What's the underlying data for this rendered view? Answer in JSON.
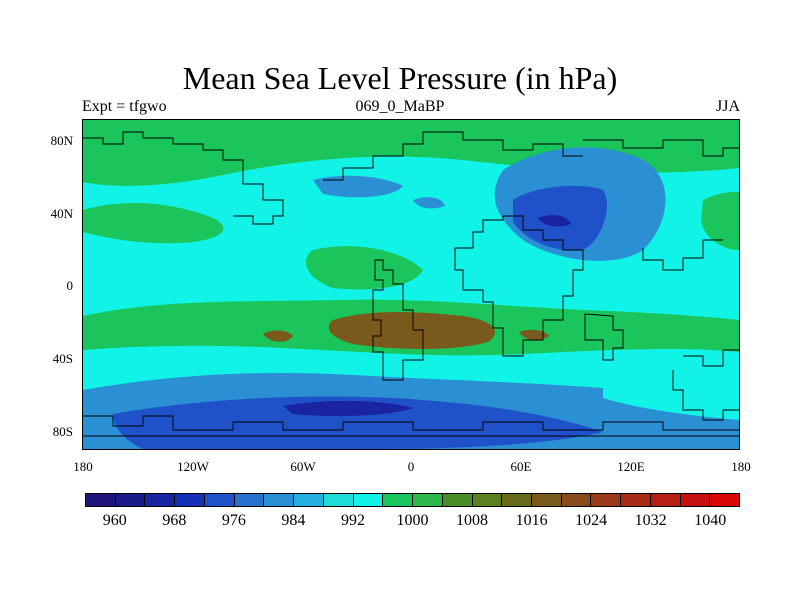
{
  "title": "Mean Sea Level Pressure (in hPa)",
  "subtitle_left": "Expt = tfgwo",
  "subtitle_center": "069_0_MaBP",
  "subtitle_right": "JJA",
  "y_ticks": [
    "80N",
    "40N",
    "0",
    "40S",
    "80S"
  ],
  "x_ticks": [
    "180",
    "120W",
    "60W",
    "0",
    "60E",
    "120E",
    "180"
  ],
  "colorbar": {
    "labels": [
      "960",
      "968",
      "976",
      "984",
      "992",
      "1000",
      "1008",
      "1016",
      "1024",
      "1032",
      "1040"
    ],
    "colors": [
      "#1e1479",
      "#1b1a8a",
      "#1a23a0",
      "#1530b4",
      "#1f52c8",
      "#2672cc",
      "#2a8fd3",
      "#25b0df",
      "#1fdcd8",
      "#12f3e8",
      "#1ac55b",
      "#2fb84a",
      "#4a8e2a",
      "#5c7f1f",
      "#6a6a1e",
      "#7a5a1c",
      "#8a4a1a",
      "#993b18",
      "#a82d16",
      "#b81f14",
      "#c81212",
      "#d80606"
    ]
  },
  "legend_colors": {
    "low_dark": "#1a3fb0",
    "low": "#2a8fd3",
    "mid_low": "#12f3e8",
    "mid": "#1ac55b",
    "high": "#7a5a1c"
  }
}
